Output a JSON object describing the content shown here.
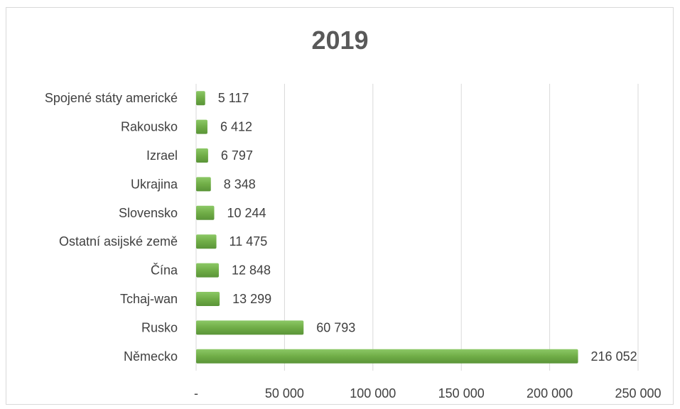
{
  "chart_data": {
    "type": "bar",
    "orientation": "horizontal",
    "title": "2019",
    "categories": [
      "Spojené státy americké",
      "Rakousko",
      "Izrael",
      "Ukrajina",
      "Slovensko",
      "Ostatní asijské země",
      "Čína",
      "Tchaj-wan",
      "Rusko",
      "Německo"
    ],
    "values": [
      5117,
      6412,
      6797,
      8348,
      10244,
      11475,
      12848,
      13299,
      60793,
      216052
    ],
    "value_labels": [
      "5 117",
      "6 412",
      "6 797",
      "8 348",
      "10 244",
      "11 475",
      "12 848",
      "13 299",
      "60 793",
      "216 052"
    ],
    "xlim": [
      0,
      250000
    ],
    "xticks": [
      0,
      50000,
      100000,
      150000,
      200000,
      250000
    ],
    "xtick_labels": [
      "-",
      "50 000",
      "100 000",
      "150 000",
      "200 000",
      "250 000"
    ],
    "xlabel": "",
    "ylabel": "",
    "grid": "vertical",
    "legend": "none",
    "bar_color": "#70ad47"
  }
}
